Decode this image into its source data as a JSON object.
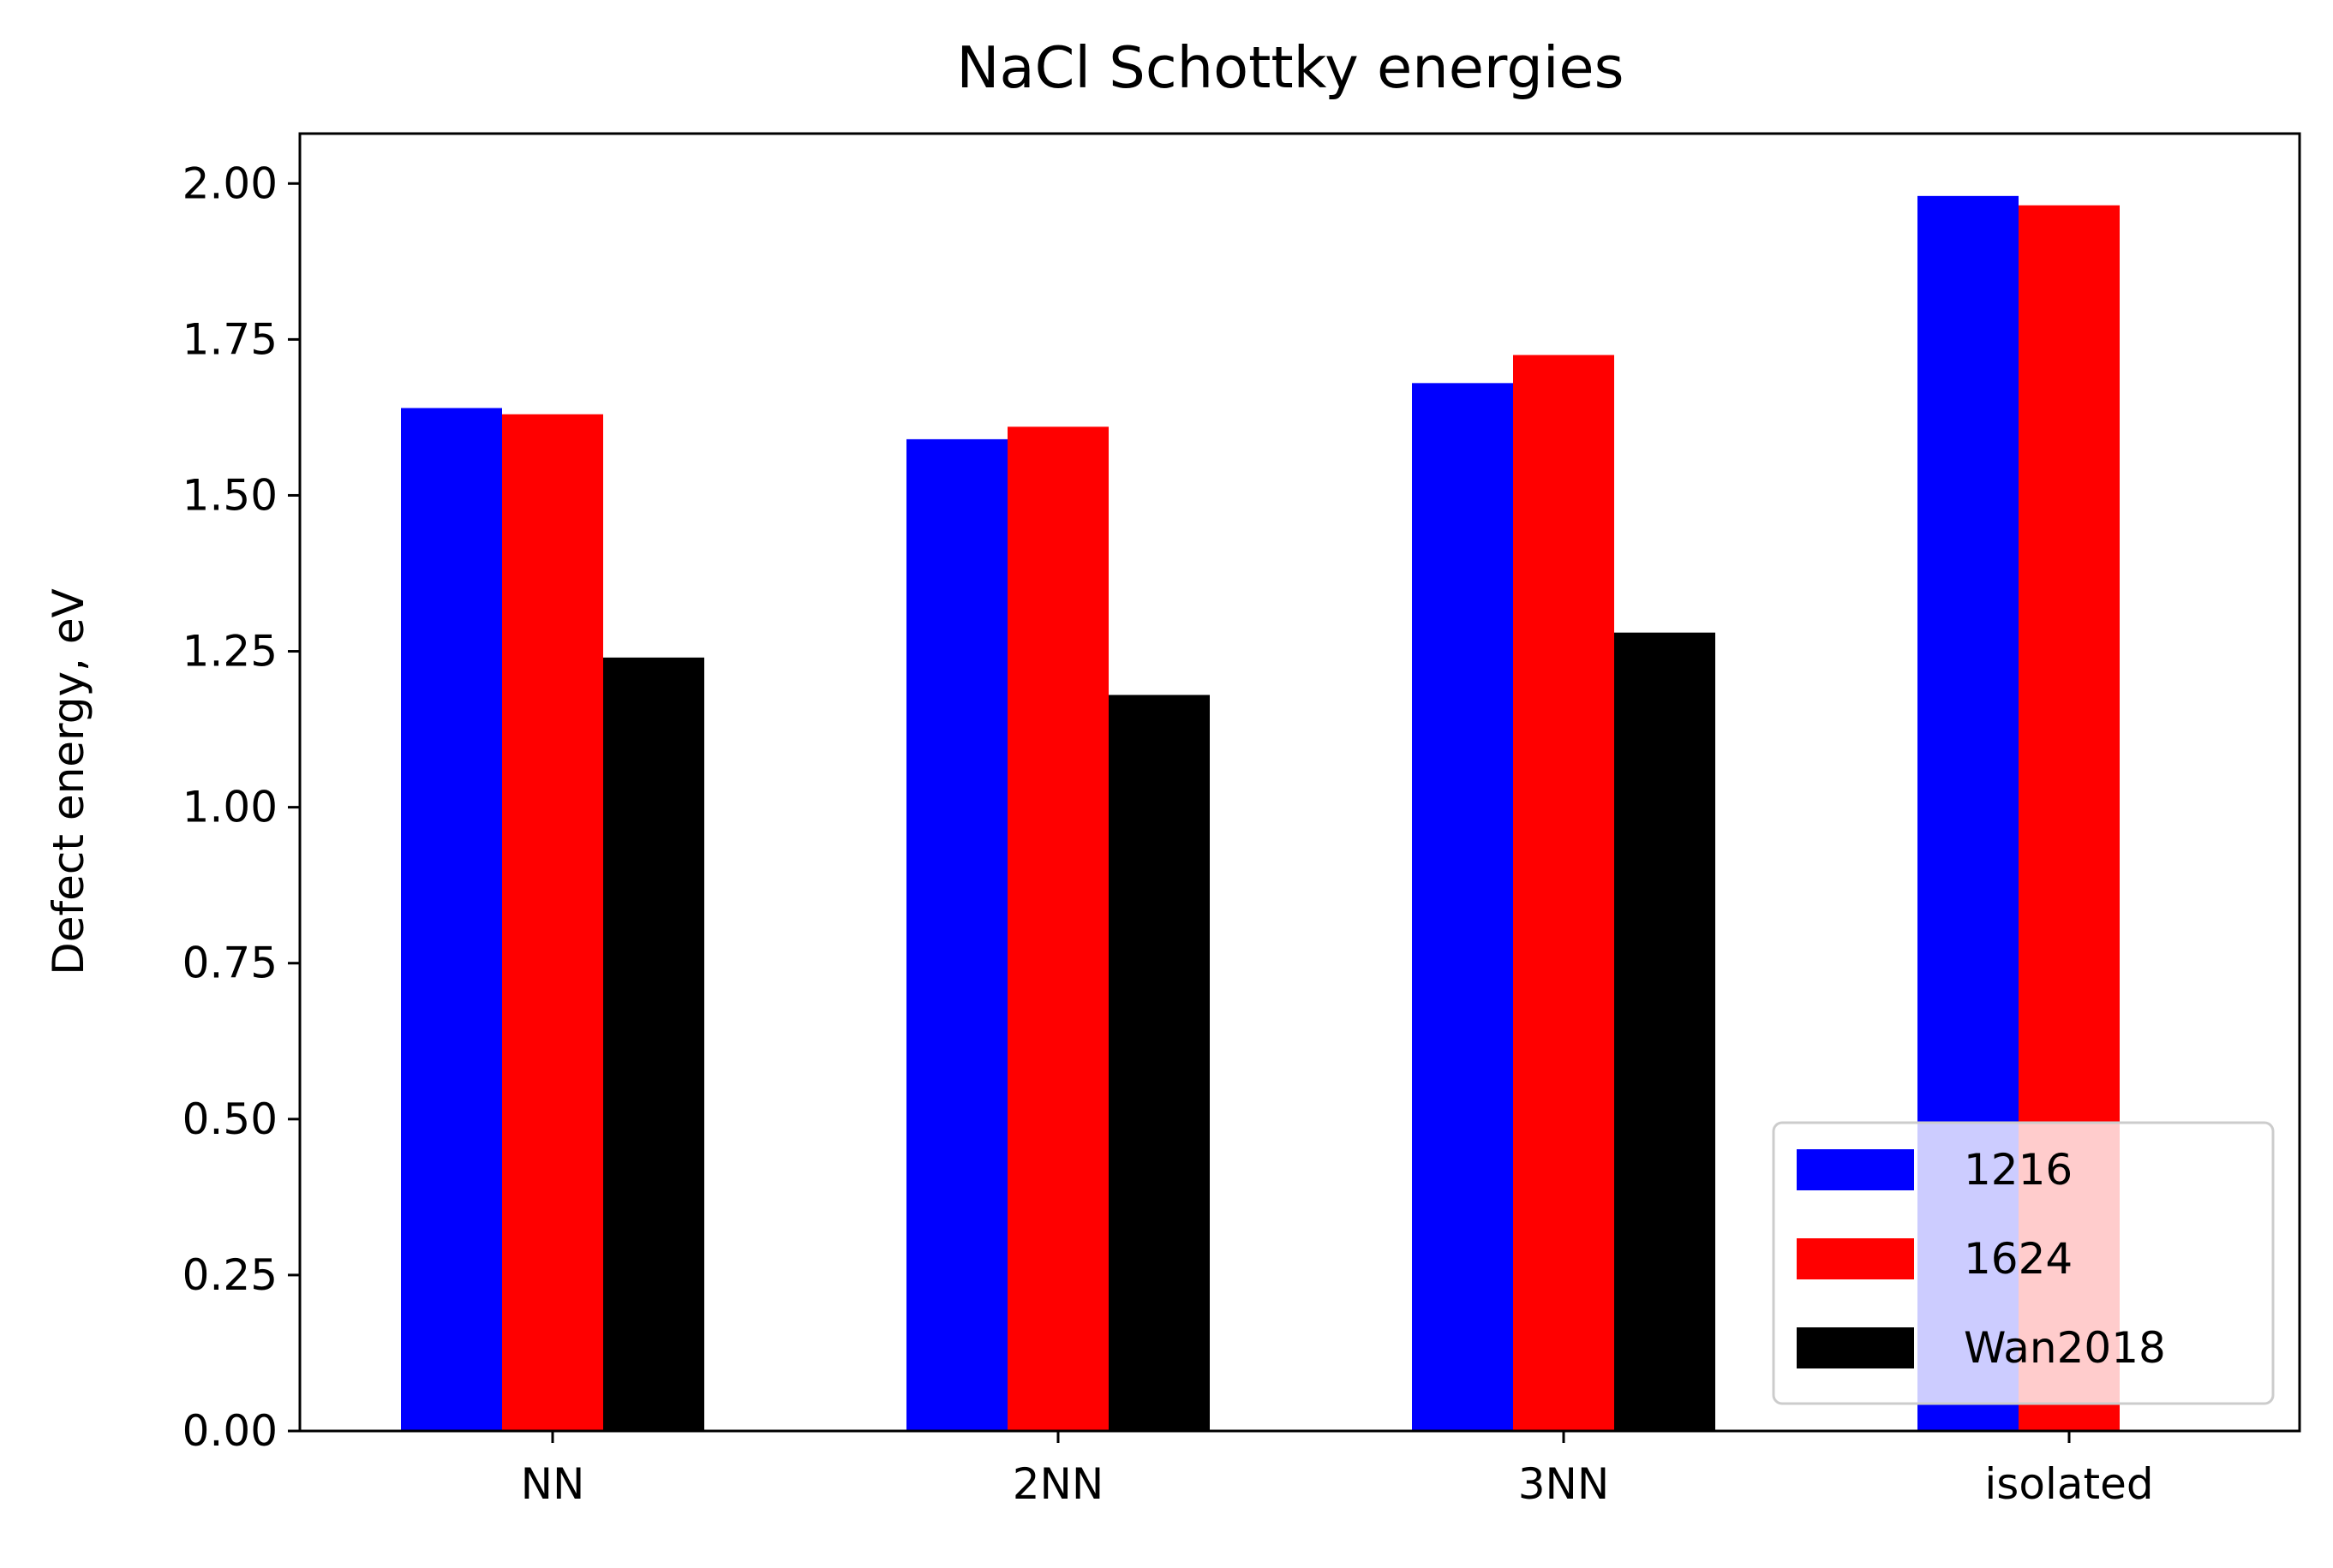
{
  "chart_data": {
    "type": "bar",
    "title": "NaCl Schottky energies",
    "xlabel": "",
    "ylabel": "Defect energy, eV",
    "categories": [
      "NN",
      "2NN",
      "3NN",
      "isolated"
    ],
    "series": [
      {
        "name": "1216",
        "color": "#0000ff",
        "values": [
          1.64,
          1.59,
          1.68,
          1.98
        ]
      },
      {
        "name": "1624",
        "color": "#ff0000",
        "values": [
          1.63,
          1.61,
          1.725,
          1.965
        ]
      },
      {
        "name": "Wan2018",
        "color": "#000000",
        "values": [
          1.24,
          1.18,
          1.28,
          null
        ]
      }
    ],
    "ylim": [
      0,
      2.08
    ],
    "yticks": [
      0.0,
      0.25,
      0.5,
      0.75,
      1.0,
      1.25,
      1.5,
      1.75,
      2.0
    ],
    "ytick_labels": [
      "0.00",
      "0.25",
      "0.50",
      "0.75",
      "1.00",
      "1.25",
      "1.50",
      "1.75",
      "2.00"
    ],
    "grid": false,
    "legend_position": "lower-right"
  }
}
